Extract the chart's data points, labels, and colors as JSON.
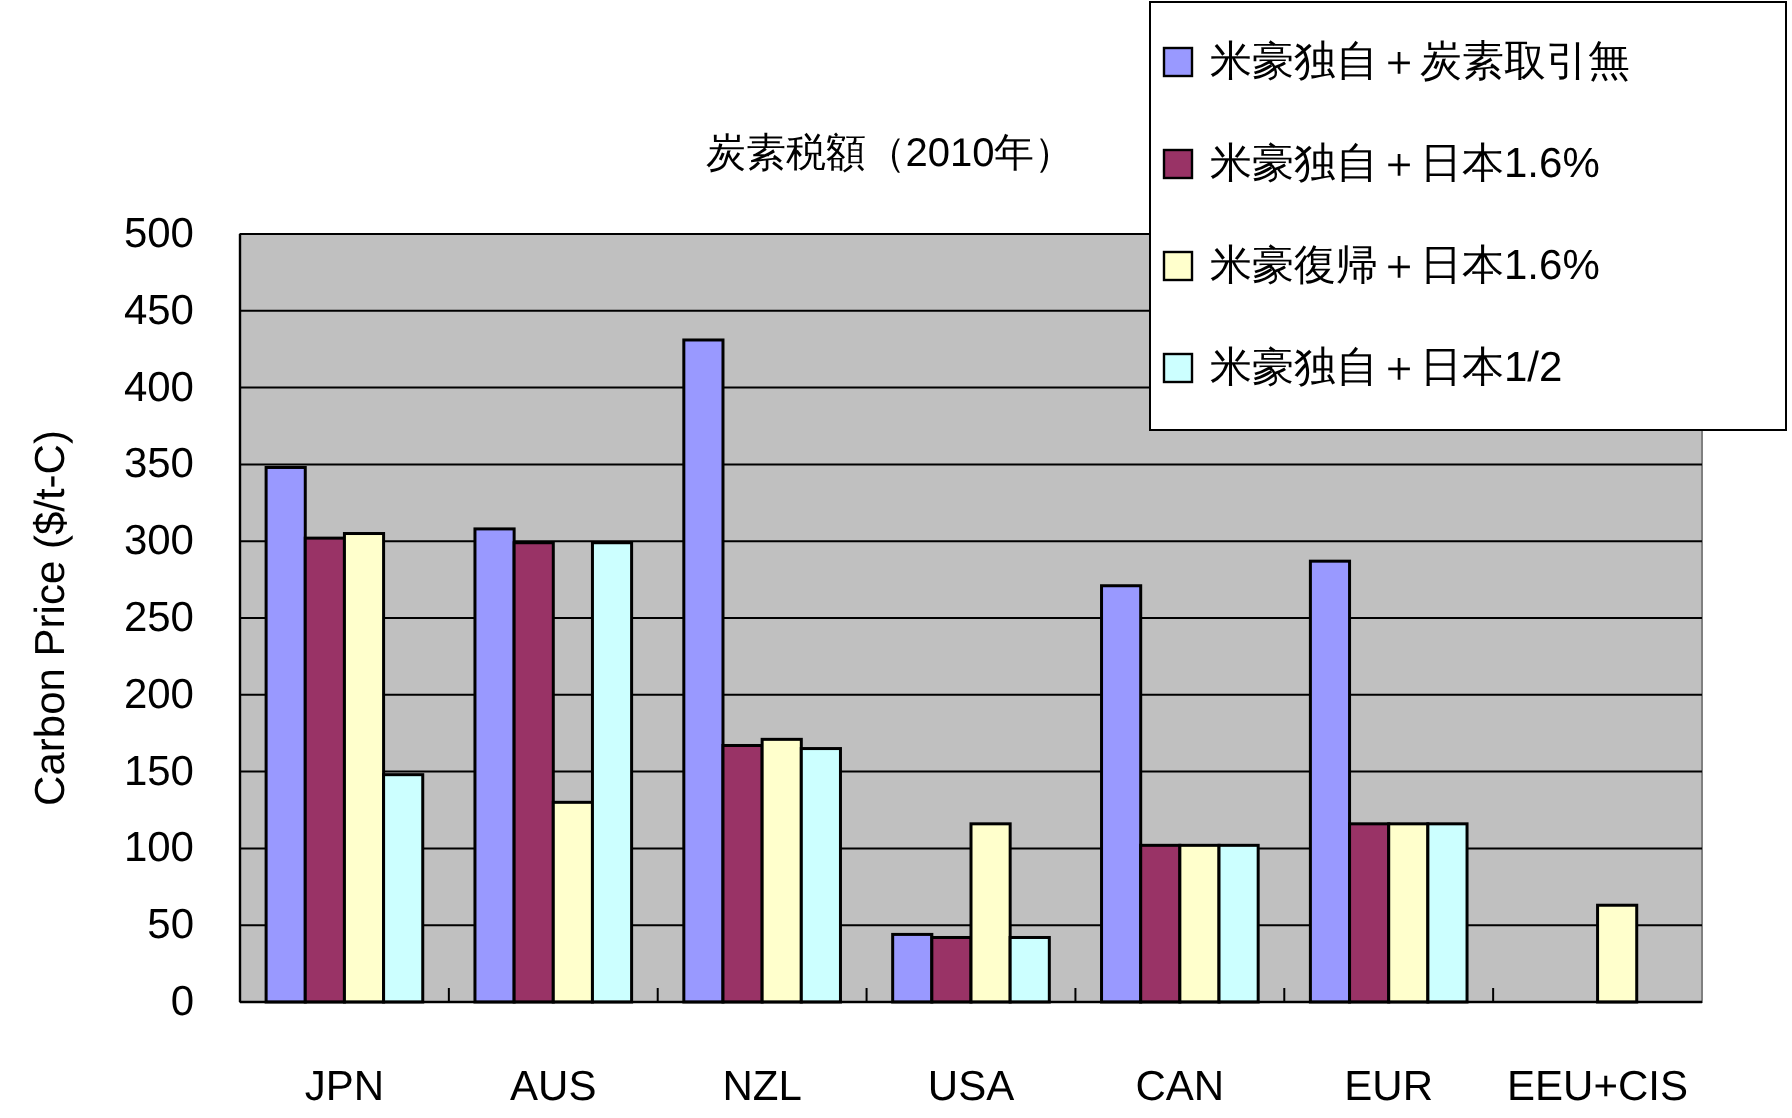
{
  "chart_data": {
    "type": "bar",
    "title": "炭素税額（2010年）",
    "ylabel": "Carbon Price ($/t-C)",
    "categories": [
      "JPN",
      "AUS",
      "NZL",
      "USA",
      "CAN",
      "EUR",
      "EEU+CIS"
    ],
    "series": [
      {
        "name": "米豪独自＋炭素取引無",
        "color": "#9999ff",
        "values": [
          348,
          308,
          431,
          44,
          271,
          287,
          null
        ]
      },
      {
        "name": "米豪独自＋日本1.6%",
        "color": "#993366",
        "values": [
          302,
          299,
          167,
          42,
          102,
          116,
          null
        ]
      },
      {
        "name": "米豪復帰＋日本1.6%",
        "color": "#ffffcc",
        "values": [
          305,
          130,
          171,
          116,
          102,
          116,
          63
        ]
      },
      {
        "name": "米豪独自＋日本1/2",
        "color": "#ccffff",
        "values": [
          148,
          299,
          165,
          42,
          102,
          116,
          null
        ]
      }
    ],
    "ylim": [
      0,
      500
    ],
    "yticks": [
      0,
      50,
      100,
      150,
      200,
      250,
      300,
      350,
      400,
      450,
      500
    ],
    "grid": "y",
    "legend": "top right"
  }
}
